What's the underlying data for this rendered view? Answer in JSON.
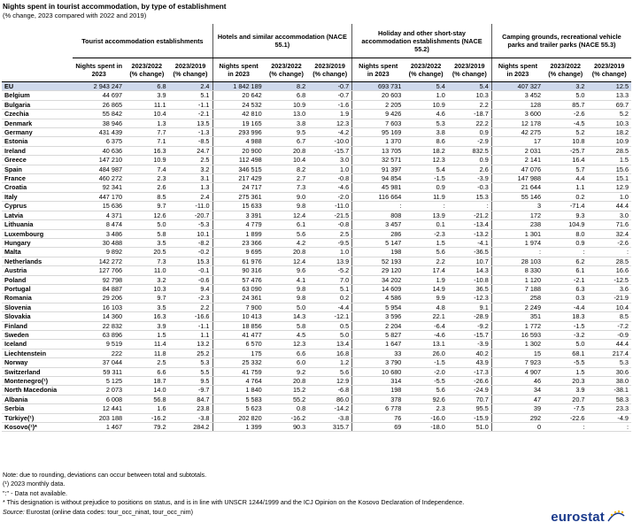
{
  "title": "Nights spent in tourist accommodation, by type of establishment",
  "subtitle": "(% change, 2023 compared with 2022 and 2019)",
  "groups": [
    "Tourist accommodation establishments",
    "Hotels and similar accommodation (NACE 55.1)",
    "Holiday and other short-stay accommodation establishments (NACE 55.2)",
    "Camping grounds, recreational vehicle parks and trailer parks (NACE 55.3)"
  ],
  "subheaders": [
    "Nights spent in 2023",
    "2023/2022 (% change)",
    "2023/2019 (% change)"
  ],
  "rows": [
    {
      "c": "EU",
      "v": [
        "2 943 247",
        "6.8",
        "2.4",
        "1 842 189",
        "8.2",
        "-0.7",
        "693 731",
        "5.4",
        "5.4",
        "407 327",
        "3.2",
        "12.5"
      ]
    },
    {
      "c": "Belgium",
      "v": [
        "44 697",
        "3.9",
        "5.1",
        "20 642",
        "6.8",
        "-0.7",
        "20 603",
        "1.0",
        "10.3",
        "3 452",
        "5.0",
        "13.3"
      ]
    },
    {
      "c": "Bulgaria",
      "v": [
        "26 865",
        "11.1",
        "-1.1",
        "24 532",
        "10.9",
        "-1.6",
        "2 205",
        "10.9",
        "2.2",
        "128",
        "85.7",
        "69.7"
      ]
    },
    {
      "c": "Czechia",
      "v": [
        "55 842",
        "10.4",
        "-2.1",
        "42 810",
        "13.0",
        "1.9",
        "9 426",
        "4.6",
        "-18.7",
        "3 600",
        "-2.6",
        "5.2"
      ]
    },
    {
      "c": "Denmark",
      "v": [
        "38 946",
        "1.3",
        "13.5",
        "19 165",
        "3.8",
        "12.3",
        "7 603",
        "5.3",
        "22.2",
        "12 178",
        "-4.5",
        "10.3"
      ]
    },
    {
      "c": "Germany",
      "v": [
        "431 439",
        "7.7",
        "-1.3",
        "293 996",
        "9.5",
        "-4.2",
        "95 169",
        "3.8",
        "0.9",
        "42 275",
        "5.2",
        "18.2"
      ]
    },
    {
      "c": "Estonia",
      "v": [
        "6 375",
        "7.1",
        "-8.5",
        "4 988",
        "6.7",
        "-10.0",
        "1 370",
        "8.6",
        "-2.9",
        "17",
        "10.8",
        "10.9"
      ]
    },
    {
      "c": "Ireland",
      "v": [
        "40 636",
        "16.3",
        "24.7",
        "20 900",
        "20.8",
        "-15.7",
        "13 705",
        "18.2",
        "832.5",
        "2 031",
        "-25.7",
        "28.5"
      ]
    },
    {
      "c": "Greece",
      "v": [
        "147 210",
        "10.9",
        "2.5",
        "112 498",
        "10.4",
        "3.0",
        "32 571",
        "12.3",
        "0.9",
        "2 141",
        "16.4",
        "1.5"
      ]
    },
    {
      "c": "Spain",
      "v": [
        "484 987",
        "7.4",
        "3.2",
        "346 515",
        "8.2",
        "1.0",
        "91 397",
        "5.4",
        "2.6",
        "47 076",
        "5.7",
        "15.6"
      ]
    },
    {
      "c": "France",
      "v": [
        "460 272",
        "2.3",
        "3.1",
        "217 429",
        "2.7",
        "-0.8",
        "94 854",
        "-1.5",
        "-3.9",
        "147 988",
        "4.4",
        "15.1"
      ]
    },
    {
      "c": "Croatia",
      "v": [
        "92 341",
        "2.6",
        "1.3",
        "24 717",
        "7.3",
        "-4.6",
        "45 981",
        "0.9",
        "-0.3",
        "21 644",
        "1.1",
        "12.9"
      ]
    },
    {
      "c": "Italy",
      "v": [
        "447 170",
        "8.5",
        "2.4",
        "275 361",
        "9.0",
        "-2.0",
        "116 664",
        "11.9",
        "15.3",
        "55 146",
        "0.2",
        "1.0"
      ]
    },
    {
      "c": "Cyprus",
      "v": [
        "15 636",
        "9.7",
        "-11.0",
        "15 633",
        "9.8",
        "-11.0",
        ":",
        ":",
        ":",
        "3",
        "-71.4",
        "44.4"
      ]
    },
    {
      "c": "Latvia",
      "v": [
        "4 371",
        "12.6",
        "-20.7",
        "3 391",
        "12.4",
        "-21.5",
        "808",
        "13.9",
        "-21.2",
        "172",
        "9.3",
        "3.0"
      ]
    },
    {
      "c": "Lithuania",
      "v": [
        "8 474",
        "5.0",
        "-5.3",
        "4 779",
        "6.1",
        "-0.8",
        "3 457",
        "0.1",
        "-13.4",
        "238",
        "104.9",
        "71.6"
      ]
    },
    {
      "c": "Luxembourg",
      "v": [
        "3 486",
        "5.8",
        "10.1",
        "1 899",
        "5.6",
        "2.5",
        "286",
        "-2.3",
        "-13.2",
        "1 301",
        "8.0",
        "32.4"
      ]
    },
    {
      "c": "Hungary",
      "v": [
        "30 488",
        "3.5",
        "-8.2",
        "23 366",
        "4.2",
        "-9.5",
        "5 147",
        "1.5",
        "-4.1",
        "1 974",
        "0.9",
        "-2.6"
      ]
    },
    {
      "c": "Malta",
      "v": [
        "9 892",
        "20.5",
        "-0.2",
        "9 695",
        "20.8",
        "1.0",
        "198",
        "5.6",
        "-36.5",
        ":",
        ":",
        ":"
      ]
    },
    {
      "c": "Netherlands",
      "v": [
        "142 272",
        "7.3",
        "15.3",
        "61 976",
        "12.4",
        "13.9",
        "52 193",
        "2.2",
        "10.7",
        "28 103",
        "6.2",
        "28.5"
      ]
    },
    {
      "c": "Austria",
      "v": [
        "127 766",
        "11.0",
        "-0.1",
        "90 316",
        "9.6",
        "-5.2",
        "29 120",
        "17.4",
        "14.3",
        "8 330",
        "6.1",
        "16.6"
      ]
    },
    {
      "c": "Poland",
      "v": [
        "92 798",
        "3.2",
        "-0.6",
        "57 476",
        "4.1",
        "7.0",
        "34 202",
        "1.9",
        "-10.8",
        "1 120",
        "-2.1",
        "-12.5"
      ]
    },
    {
      "c": "Portugal",
      "v": [
        "84 887",
        "10.3",
        "9.4",
        "63 090",
        "9.8",
        "5.1",
        "14 609",
        "14.9",
        "36.5",
        "7 188",
        "6.3",
        "3.6"
      ]
    },
    {
      "c": "Romania",
      "v": [
        "29 206",
        "9.7",
        "-2.3",
        "24 361",
        "9.8",
        "0.2",
        "4 586",
        "9.9",
        "-12.3",
        "258",
        "0.3",
        "-21.9"
      ]
    },
    {
      "c": "Slovenia",
      "v": [
        "16 103",
        "3.5",
        "2.2",
        "7 900",
        "5.0",
        "-4.4",
        "5 954",
        "4.8",
        "9.1",
        "2 249",
        "-4.4",
        "10.4"
      ]
    },
    {
      "c": "Slovakia",
      "v": [
        "14 360",
        "16.3",
        "-16.6",
        "10 413",
        "14.3",
        "-12.1",
        "3 596",
        "22.1",
        "-28.9",
        "351",
        "18.3",
        "8.5"
      ]
    },
    {
      "c": "Finland",
      "v": [
        "22 832",
        "3.9",
        "-1.1",
        "18 856",
        "5.8",
        "0.5",
        "2 204",
        "-6.4",
        "-9.2",
        "1 772",
        "-1.5",
        "-7.2"
      ]
    },
    {
      "c": "Sweden",
      "v": [
        "63 896",
        "1.5",
        "1.1",
        "41 477",
        "4.5",
        "5.0",
        "5 827",
        "-4.6",
        "-15.7",
        "16 593",
        "-3.2",
        "-0.9"
      ]
    },
    {
      "c": "Iceland",
      "v": [
        "9 519",
        "11.4",
        "13.2",
        "6 570",
        "12.3",
        "13.4",
        "1 647",
        "13.1",
        "-3.9",
        "1 302",
        "5.0",
        "44.4"
      ]
    },
    {
      "c": "Liechtenstein",
      "v": [
        "222",
        "11.8",
        "25.2",
        "175",
        "6.6",
        "16.8",
        "33",
        "26.0",
        "40.2",
        "15",
        "68.1",
        "217.4"
      ]
    },
    {
      "c": "Norway",
      "v": [
        "37 044",
        "2.5",
        "5.3",
        "25 332",
        "6.0",
        "1.2",
        "3 790",
        "-1.5",
        "43.9",
        "7 923",
        "-5.5",
        "5.3"
      ]
    },
    {
      "c": "Switzerland",
      "v": [
        "59 311",
        "6.6",
        "5.5",
        "41 759",
        "9.2",
        "5.6",
        "10 680",
        "-2.0",
        "-17.3",
        "4 907",
        "1.5",
        "30.6"
      ]
    },
    {
      "c": "Montenegro(¹)",
      "v": [
        "5 125",
        "18.7",
        "9.5",
        "4 764",
        "20.8",
        "12.9",
        "314",
        "-5.5",
        "-26.6",
        "46",
        "20.3",
        "38.0"
      ]
    },
    {
      "c": "North Macedonia",
      "v": [
        "2 073",
        "14.0",
        "-9.7",
        "1 840",
        "15.2",
        "-6.8",
        "198",
        "5.6",
        "-24.9",
        "34",
        "3.9",
        "-38.1"
      ]
    },
    {
      "c": "Albania",
      "v": [
        "6 008",
        "56.8",
        "84.7",
        "5 583",
        "55.2",
        "86.0",
        "378",
        "92.6",
        "70.7",
        "47",
        "20.7",
        "58.3"
      ]
    },
    {
      "c": "Serbia",
      "v": [
        "12 441",
        "1.6",
        "23.8",
        "5 623",
        "0.8",
        "-14.2",
        "6 778",
        "2.3",
        "95.5",
        "39",
        "-7.5",
        "23.3"
      ]
    },
    {
      "c": "Türkiye(¹)",
      "v": [
        "203 188",
        "-16.2",
        "-3.8",
        "202 820",
        "-16.2",
        "-3.8",
        "76",
        "-16.0",
        "-15.9",
        "292",
        "-22.6",
        "-4.9"
      ]
    },
    {
      "c": "Kosovo(¹)*",
      "v": [
        "1 467",
        "79.2",
        "284.2",
        "1 399",
        "90.3",
        "315.7",
        "69",
        "-18.0",
        "51.0",
        "0",
        ":",
        ":"
      ]
    }
  ],
  "notes": [
    "Note: due to rounding, deviations can occur between total and subtotals.",
    "(¹) 2023 monthly data.",
    "\":\" - Data not available.",
    "* This designation is without prejudice to positions on status, and is in line with UNSCR 1244/1999 and the ICJ Opinion on the Kosovo Declaration of Independence."
  ],
  "source_label": "Source:",
  "source_text": "Eurostat (online data codes: tour_occ_ninat, tour_occ_nim)",
  "logo_text": "eurostat",
  "colors": {
    "eu_row": "#cfd9ec",
    "logo": "#1a3a8c",
    "logo_star": "#f5b800"
  }
}
